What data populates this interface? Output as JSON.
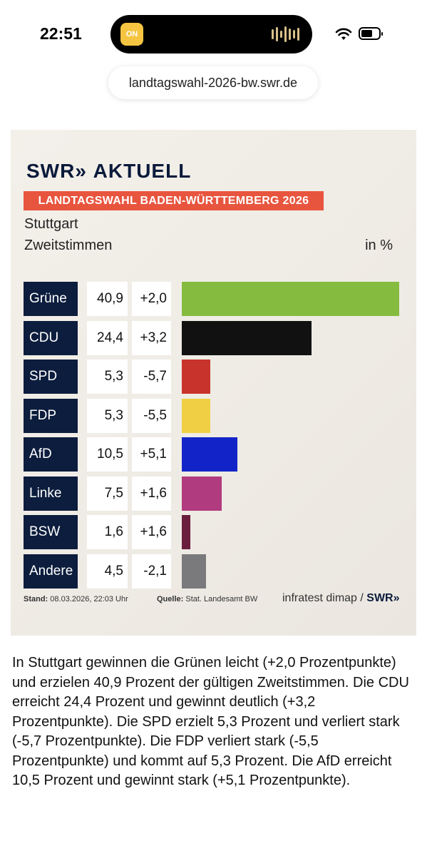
{
  "status_bar": {
    "time": "22:51",
    "app_badge": "ON"
  },
  "browser": {
    "url": "landtagswahl-2026-bw.swr.de"
  },
  "graphic": {
    "logo_text": "SWR",
    "logo_chevrons": "»",
    "logo_suffix": "AKTUELL",
    "banner": "LANDTAGSWAHL BADEN-WÜRTTEMBERG 2026",
    "location": "Stuttgart",
    "subtitle": "Zweitstimmen",
    "unit": "in %",
    "footer": {
      "stand_label": "Stand:",
      "stand_value": "08.03.2026, 22:03 Uhr",
      "source_label": "Quelle:",
      "source_value": "Stat. Landesamt BW",
      "brand": "infratest dimap /",
      "brand_swr": "SWR",
      "brand_chevrons": "»"
    }
  },
  "chart_data": {
    "type": "bar",
    "categories": [
      "Grüne",
      "CDU",
      "SPD",
      "FDP",
      "AfD",
      "Linke",
      "BSW",
      "Andere"
    ],
    "values": [
      40.9,
      24.4,
      5.3,
      5.3,
      10.5,
      7.5,
      1.6,
      4.5
    ],
    "value_labels": [
      "40,9",
      "24,4",
      "5,3",
      "5,3",
      "10,5",
      "7,5",
      "1,6",
      "4,5"
    ],
    "changes": [
      "+2,0",
      "+3,2",
      "-5,7",
      "-5,5",
      "+5,1",
      "+1,6",
      "+1,6",
      "-2,1"
    ],
    "colors": [
      "#85bc3f",
      "#111111",
      "#c8342b",
      "#f1cf45",
      "#1224c8",
      "#b03b7e",
      "#6a1d3c",
      "#7a7a7c"
    ],
    "title": "LANDTAGSWAHL BADEN-WÜRTTEMBERG 2026",
    "subtitle": "Zweitstimmen",
    "ylabel": "in %",
    "xlim": [
      0,
      40.9
    ]
  },
  "article": {
    "text": "In Stuttgart gewinnen die Grünen leicht (+2,0 Prozentpunkte) und erzielen 40,9 Prozent der gültigen Zweitstimmen. Die CDU erreicht 24,4 Prozent und gewinnt deutlich (+3,2 Prozentpunkte). Die SPD erzielt 5,3 Prozent und verliert stark (-5,7 Prozentpunkte). Die FDP verliert stark (-5,5 Prozentpunkte) und kommt auf 5,3 Prozent. Die AfD erreicht 10,5 Prozent und gewinnt stark (+5,1 Prozentpunkte)."
  }
}
